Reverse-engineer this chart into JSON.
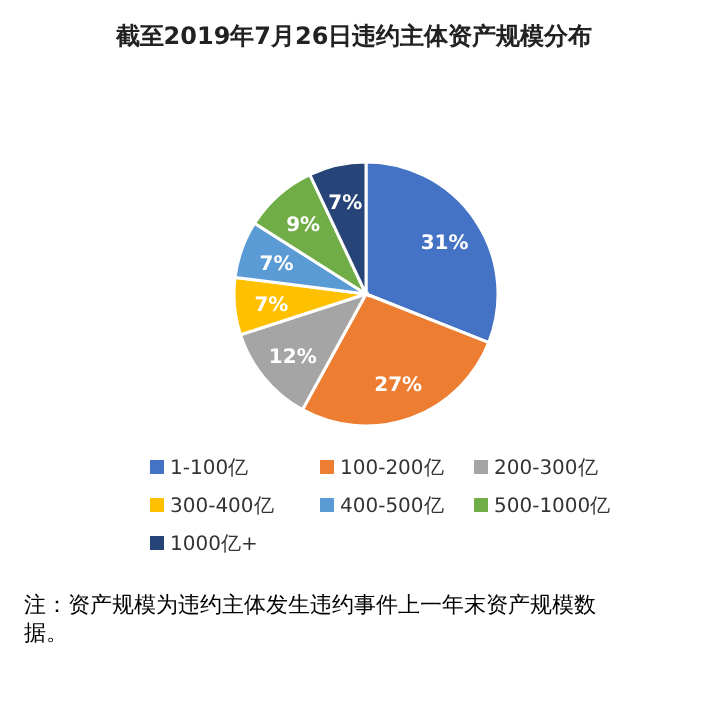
{
  "chart_data": {
    "type": "pie",
    "title": "截至2019年7月26日违约主体资产规模分布",
    "categories": [
      "1-100亿",
      "100-200亿",
      "200-300亿",
      "300-400亿",
      "400-500亿",
      "500-1000亿",
      "1000亿+"
    ],
    "values": [
      31,
      27,
      12,
      7,
      7,
      9,
      7
    ],
    "colors": [
      "#4472c4",
      "#ed7d31",
      "#a5a5a5",
      "#ffc000",
      "#5b9bd5",
      "#70ad47",
      "#264478"
    ],
    "value_labels": [
      "31%",
      "27%",
      "12%",
      "7%",
      "7%",
      "9%",
      "7%"
    ],
    "legend": "bottom",
    "annotations": [
      "注：资产规模为违约主体发生违约事件上一年末资产规模数据。"
    ]
  }
}
